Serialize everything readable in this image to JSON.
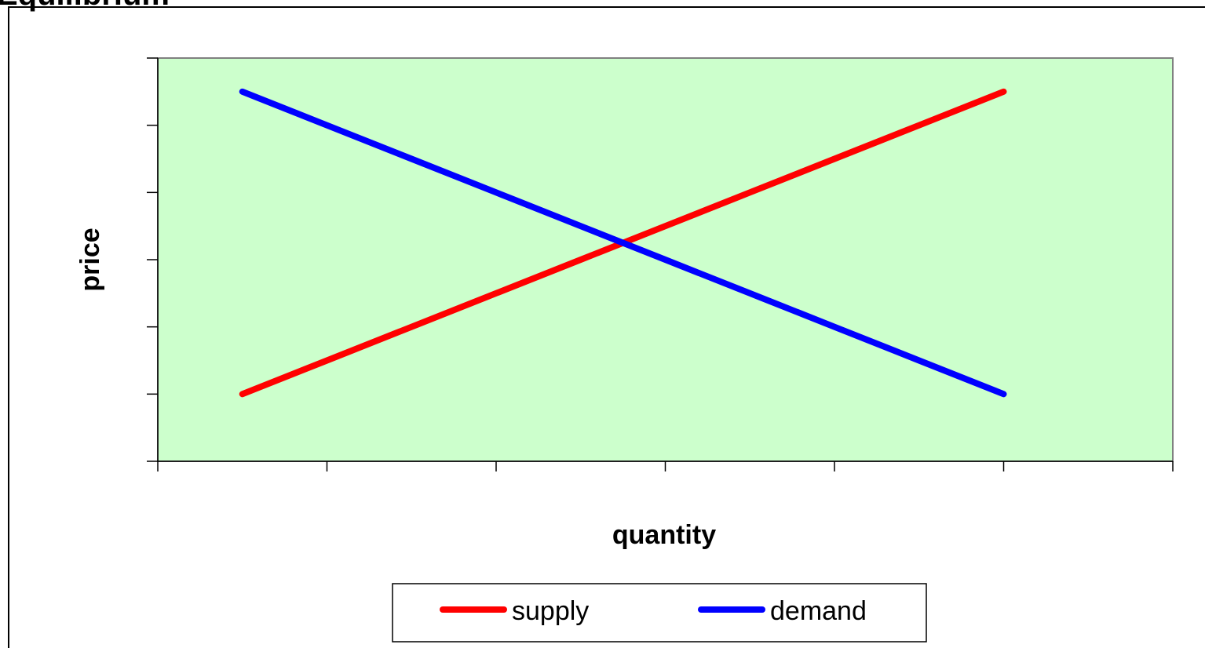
{
  "chart_data": {
    "type": "line",
    "title": "Equilibrium",
    "xlabel": "quantity",
    "ylabel": "price",
    "x": [
      1,
      2,
      3,
      4,
      5,
      6,
      7,
      8,
      9,
      10
    ],
    "xlim": [
      0,
      12
    ],
    "ylim": [
      0,
      6
    ],
    "x_tick_count": 6,
    "y_tick_count": 6,
    "tick_labels_shown": false,
    "grid": false,
    "plot_background": "#ccffcc",
    "legend": {
      "position": "bottom",
      "entries": [
        "supply",
        "demand"
      ]
    },
    "series": [
      {
        "name": "supply",
        "color": "#ff0000",
        "values": [
          1,
          1.5,
          2,
          2.5,
          3,
          3.5,
          4,
          4.5,
          5,
          5.5
        ]
      },
      {
        "name": "demand",
        "color": "#0000ff",
        "values": [
          5.5,
          5,
          4.5,
          4,
          3.5,
          3,
          2.5,
          2,
          1.5,
          1
        ]
      }
    ]
  }
}
